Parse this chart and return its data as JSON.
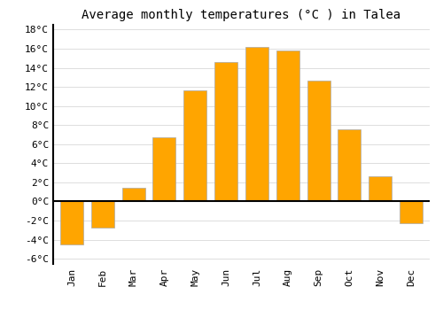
{
  "months": [
    "Jan",
    "Feb",
    "Mar",
    "Apr",
    "May",
    "Jun",
    "Jul",
    "Aug",
    "Sep",
    "Oct",
    "Nov",
    "Dec"
  ],
  "temperatures": [
    -4.5,
    -2.7,
    1.4,
    6.7,
    11.6,
    14.6,
    16.2,
    15.8,
    12.7,
    7.6,
    2.6,
    -2.3
  ],
  "bar_color": "#FFA500",
  "bar_edge_color": "#aaaaaa",
  "title": "Average monthly temperatures (°C ) in Talea",
  "ylabel_ticks": [
    -6,
    -4,
    -2,
    0,
    2,
    4,
    6,
    8,
    10,
    12,
    14,
    16,
    18
  ],
  "ylim": [
    -6.5,
    18.5
  ],
  "background_color": "#ffffff",
  "grid_color": "#dddddd",
  "title_fontsize": 10,
  "tick_fontsize": 8,
  "bar_width": 0.75
}
